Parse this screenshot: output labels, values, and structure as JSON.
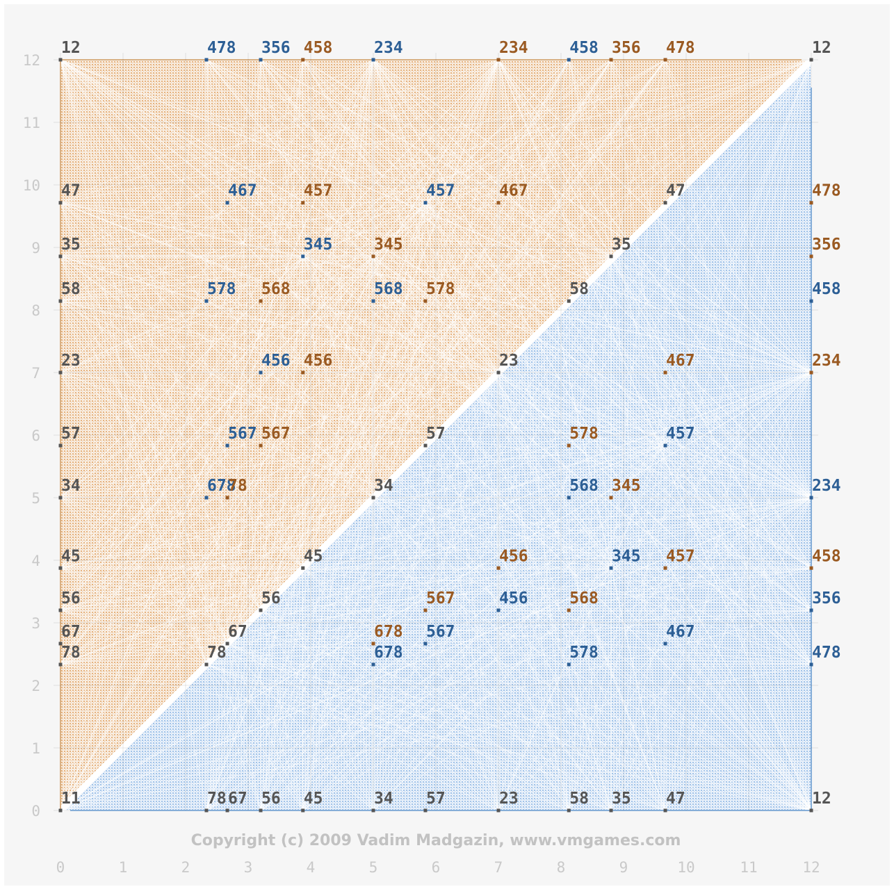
{
  "chart_data": {
    "type": "scatter",
    "copyright": "Copyright (c) 2009 Vadim Madgazin, www.vmgames.com",
    "xlim": [
      0,
      12
    ],
    "ylim": [
      0,
      12
    ],
    "x_ticks": [
      "0",
      "1",
      "2",
      "3",
      "4",
      "5",
      "6",
      "7",
      "8",
      "9",
      "10",
      "11",
      "12"
    ],
    "y_ticks": [
      "0",
      "1",
      "2",
      "3",
      "4",
      "5",
      "6",
      "7",
      "8",
      "9",
      "10",
      "11",
      "12"
    ],
    "grid": true,
    "colors": {
      "upper_fill": "#e8b480",
      "lower_fill": "#a6c8ec",
      "grey_label": "#555555",
      "orange_label": "#9a5a22",
      "blue_label": "#2d5f95"
    },
    "points": [
      {
        "x": 0,
        "y": 12,
        "label": "12",
        "color": "grey"
      },
      {
        "x": 2.333,
        "y": 12,
        "label": "478",
        "color": "blue"
      },
      {
        "x": 3.2,
        "y": 12,
        "label": "356",
        "color": "blue"
      },
      {
        "x": 3.875,
        "y": 12,
        "label": "458",
        "color": "orange"
      },
      {
        "x": 5,
        "y": 12,
        "label": "234",
        "color": "blue"
      },
      {
        "x": 7,
        "y": 12,
        "label": "234",
        "color": "orange"
      },
      {
        "x": 8.125,
        "y": 12,
        "label": "458",
        "color": "blue"
      },
      {
        "x": 8.8,
        "y": 12,
        "label": "356",
        "color": "orange"
      },
      {
        "x": 9.667,
        "y": 12,
        "label": "478",
        "color": "orange"
      },
      {
        "x": 12,
        "y": 12,
        "label": "12",
        "color": "grey"
      },
      {
        "x": 0,
        "y": 9.714,
        "label": "47",
        "color": "grey"
      },
      {
        "x": 2.667,
        "y": 9.714,
        "label": "467",
        "color": "blue"
      },
      {
        "x": 3.875,
        "y": 9.714,
        "label": "457",
        "color": "orange"
      },
      {
        "x": 5.833,
        "y": 9.714,
        "label": "457",
        "color": "blue"
      },
      {
        "x": 7,
        "y": 9.714,
        "label": "467",
        "color": "orange"
      },
      {
        "x": 9.667,
        "y": 9.714,
        "label": "47",
        "color": "grey"
      },
      {
        "x": 12,
        "y": 9.714,
        "label": "478",
        "color": "orange"
      },
      {
        "x": 0,
        "y": 8.857,
        "label": "35",
        "color": "grey"
      },
      {
        "x": 3.875,
        "y": 8.857,
        "label": "345",
        "color": "blue"
      },
      {
        "x": 5,
        "y": 8.857,
        "label": "345",
        "color": "orange"
      },
      {
        "x": 8.8,
        "y": 8.857,
        "label": "35",
        "color": "grey"
      },
      {
        "x": 12,
        "y": 8.857,
        "label": "356",
        "color": "orange"
      },
      {
        "x": 0,
        "y": 8.143,
        "label": "58",
        "color": "grey"
      },
      {
        "x": 2.333,
        "y": 8.143,
        "label": "578",
        "color": "blue"
      },
      {
        "x": 3.2,
        "y": 8.143,
        "label": "568",
        "color": "orange"
      },
      {
        "x": 5,
        "y": 8.143,
        "label": "568",
        "color": "blue"
      },
      {
        "x": 5.833,
        "y": 8.143,
        "label": "578",
        "color": "orange"
      },
      {
        "x": 8.125,
        "y": 8.143,
        "label": "58",
        "color": "grey"
      },
      {
        "x": 12,
        "y": 8.143,
        "label": "458",
        "color": "blue"
      },
      {
        "x": 0,
        "y": 7,
        "label": "23",
        "color": "grey"
      },
      {
        "x": 3.2,
        "y": 7,
        "label": "456",
        "color": "blue"
      },
      {
        "x": 3.875,
        "y": 7,
        "label": "456",
        "color": "orange"
      },
      {
        "x": 7,
        "y": 7,
        "label": "23",
        "color": "grey"
      },
      {
        "x": 9.667,
        "y": 7,
        "label": "467",
        "color": "orange"
      },
      {
        "x": 12,
        "y": 7,
        "label": "234",
        "color": "orange"
      },
      {
        "x": 0,
        "y": 5.833,
        "label": "57",
        "color": "grey"
      },
      {
        "x": 2.667,
        "y": 5.833,
        "label": "567",
        "color": "blue"
      },
      {
        "x": 3.2,
        "y": 5.833,
        "label": "567",
        "color": "orange"
      },
      {
        "x": 5.833,
        "y": 5.833,
        "label": "57",
        "color": "grey"
      },
      {
        "x": 8.125,
        "y": 5.833,
        "label": "578",
        "color": "orange"
      },
      {
        "x": 9.667,
        "y": 5.833,
        "label": "457",
        "color": "blue"
      },
      {
        "x": 0,
        "y": 5,
        "label": "34",
        "color": "grey"
      },
      {
        "x": 2.333,
        "y": 5,
        "label": "678",
        "color": "blue"
      },
      {
        "x": 2.667,
        "y": 5,
        "label": "78",
        "color": "orange"
      },
      {
        "x": 5,
        "y": 5,
        "label": "34",
        "color": "grey"
      },
      {
        "x": 8.125,
        "y": 5,
        "label": "568",
        "color": "blue"
      },
      {
        "x": 8.8,
        "y": 5,
        "label": "345",
        "color": "orange"
      },
      {
        "x": 12,
        "y": 5,
        "label": "234",
        "color": "blue"
      },
      {
        "x": 0,
        "y": 3.875,
        "label": "45",
        "color": "grey"
      },
      {
        "x": 3.875,
        "y": 3.875,
        "label": "45",
        "color": "grey"
      },
      {
        "x": 7,
        "y": 3.875,
        "label": "456",
        "color": "orange"
      },
      {
        "x": 8.8,
        "y": 3.875,
        "label": "345",
        "color": "blue"
      },
      {
        "x": 9.667,
        "y": 3.875,
        "label": "457",
        "color": "orange"
      },
      {
        "x": 12,
        "y": 3.875,
        "label": "458",
        "color": "orange"
      },
      {
        "x": 0,
        "y": 3.2,
        "label": "56",
        "color": "grey"
      },
      {
        "x": 3.2,
        "y": 3.2,
        "label": "56",
        "color": "grey"
      },
      {
        "x": 5.833,
        "y": 3.2,
        "label": "567",
        "color": "orange"
      },
      {
        "x": 7,
        "y": 3.2,
        "label": "456",
        "color": "blue"
      },
      {
        "x": 8.125,
        "y": 3.2,
        "label": "568",
        "color": "orange"
      },
      {
        "x": 12,
        "y": 3.2,
        "label": "356",
        "color": "blue"
      },
      {
        "x": 0,
        "y": 2.667,
        "label": "67",
        "color": "grey"
      },
      {
        "x": 2.667,
        "y": 2.667,
        "label": "67",
        "color": "grey"
      },
      {
        "x": 5,
        "y": 2.667,
        "label": "678",
        "color": "orange"
      },
      {
        "x": 5.833,
        "y": 2.667,
        "label": "567",
        "color": "blue"
      },
      {
        "x": 9.667,
        "y": 2.667,
        "label": "467",
        "color": "blue"
      },
      {
        "x": 0,
        "y": 2.333,
        "label": "78",
        "color": "grey"
      },
      {
        "x": 2.333,
        "y": 2.333,
        "label": "78",
        "color": "grey"
      },
      {
        "x": 5,
        "y": 2.333,
        "label": "678",
        "color": "blue"
      },
      {
        "x": 8.125,
        "y": 2.333,
        "label": "578",
        "color": "blue"
      },
      {
        "x": 12,
        "y": 2.333,
        "label": "478",
        "color": "blue"
      },
      {
        "x": 0,
        "y": 0,
        "label": "11",
        "color": "grey"
      },
      {
        "x": 2.333,
        "y": 0,
        "label": "78",
        "color": "grey"
      },
      {
        "x": 2.667,
        "y": 0,
        "label": "67",
        "color": "grey"
      },
      {
        "x": 3.2,
        "y": 0,
        "label": "56",
        "color": "grey"
      },
      {
        "x": 3.875,
        "y": 0,
        "label": "45",
        "color": "grey"
      },
      {
        "x": 5,
        "y": 0,
        "label": "34",
        "color": "grey"
      },
      {
        "x": 5.833,
        "y": 0,
        "label": "57",
        "color": "grey"
      },
      {
        "x": 7,
        "y": 0,
        "label": "23",
        "color": "grey"
      },
      {
        "x": 8.125,
        "y": 0,
        "label": "58",
        "color": "grey"
      },
      {
        "x": 8.8,
        "y": 0,
        "label": "35",
        "color": "grey"
      },
      {
        "x": 9.667,
        "y": 0,
        "label": "47",
        "color": "grey"
      },
      {
        "x": 12,
        "y": 0,
        "label": "12",
        "color": "grey"
      }
    ]
  }
}
